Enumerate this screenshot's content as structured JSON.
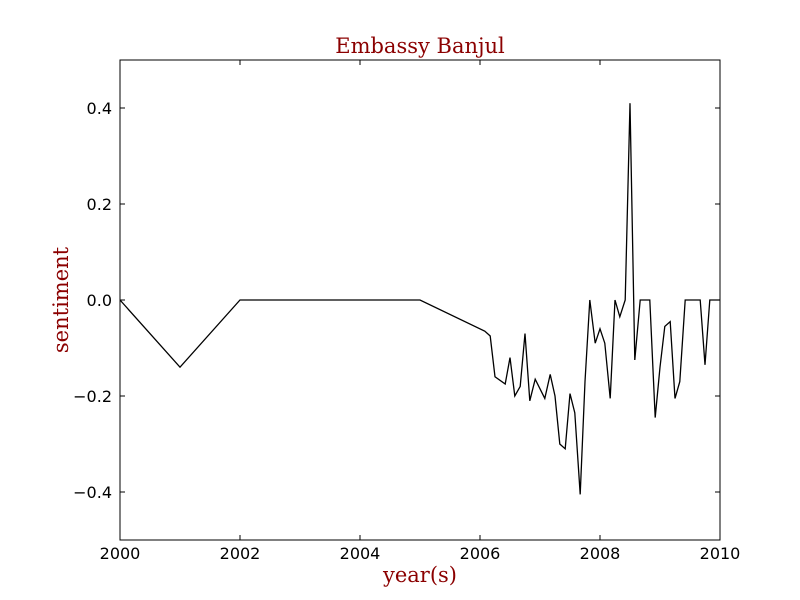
{
  "chart_data": {
    "type": "line",
    "title": "Embassy Banjul",
    "xlabel": "year(s)",
    "ylabel": "sentiment",
    "xlim": [
      2000,
      2010
    ],
    "ylim": [
      -0.5,
      0.5
    ],
    "grid": false,
    "legend": "none",
    "title_color": "#8b0000",
    "label_color": "#8b0000",
    "line_color": "#000000",
    "x_ticks": [
      {
        "value": 2000,
        "label": "2000"
      },
      {
        "value": 2002,
        "label": "2002"
      },
      {
        "value": 2004,
        "label": "2004"
      },
      {
        "value": 2006,
        "label": "2006"
      },
      {
        "value": 2008,
        "label": "2008"
      },
      {
        "value": 2010,
        "label": "2010"
      }
    ],
    "y_ticks": [
      {
        "value": -0.4,
        "label": "−0.4"
      },
      {
        "value": -0.2,
        "label": "−0.2"
      },
      {
        "value": 0.0,
        "label": "0.0"
      },
      {
        "value": 0.2,
        "label": "0.2"
      },
      {
        "value": 0.4,
        "label": "0.4"
      }
    ],
    "series": [
      {
        "x": [
          2000.0,
          2001.0,
          2002.0,
          2005.0,
          2006.08,
          2006.17,
          2006.25,
          2006.42,
          2006.5,
          2006.58,
          2006.67,
          2006.75,
          2006.83,
          2006.92,
          2007.08,
          2007.17,
          2007.25,
          2007.33,
          2007.42,
          2007.5,
          2007.58,
          2007.67,
          2007.75,
          2007.83,
          2007.92,
          2008.0,
          2008.08,
          2008.17,
          2008.25,
          2008.33,
          2008.42,
          2008.5,
          2008.58,
          2008.67,
          2008.83,
          2008.92,
          2009.0,
          2009.08,
          2009.17,
          2009.25,
          2009.33,
          2009.42,
          2009.5,
          2009.58,
          2009.67,
          2009.75,
          2009.83,
          2009.92,
          2010.0
        ],
        "y": [
          0.0,
          -0.14,
          0.0,
          0.0,
          -0.065,
          -0.075,
          -0.16,
          -0.175,
          -0.12,
          -0.2,
          -0.18,
          -0.07,
          -0.21,
          -0.165,
          -0.205,
          -0.155,
          -0.2,
          -0.3,
          -0.31,
          -0.195,
          -0.235,
          -0.405,
          -0.17,
          0.0,
          -0.09,
          -0.06,
          -0.09,
          -0.205,
          0.0,
          -0.035,
          0.0,
          0.41,
          -0.125,
          0.0,
          0.0,
          -0.245,
          -0.14,
          -0.055,
          -0.045,
          -0.205,
          -0.17,
          0.0,
          0.0,
          0.0,
          0.0,
          -0.135,
          0.0,
          0.0,
          0.0
        ]
      }
    ]
  }
}
